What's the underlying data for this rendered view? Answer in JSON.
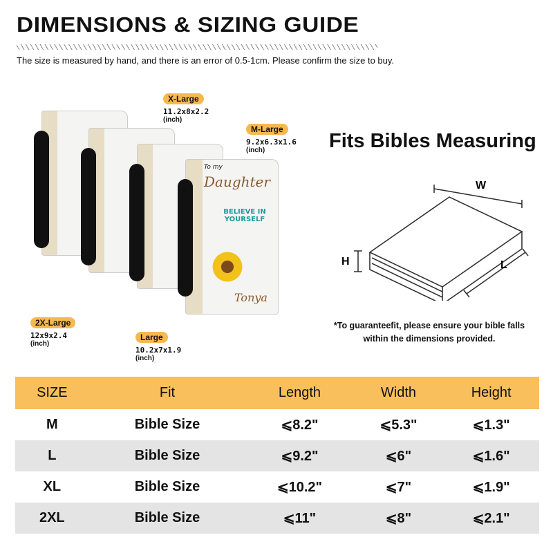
{
  "header": {
    "title": "DIMENSIONS & SIZING GUIDE",
    "note": "The size is measured by hand, and there is an error of 0.5-1cm. Please confirm the size to buy."
  },
  "sizes": [
    {
      "label": "X-Large",
      "dims": "11.2x8x2.2",
      "unit": "(inch)"
    },
    {
      "label": "M-Large",
      "dims": "9.2x6.3x1.6",
      "unit": "(inch)"
    },
    {
      "label": "2X-Large",
      "dims": "12x9x2.4",
      "unit": "(inch)"
    },
    {
      "label": "Large",
      "dims": "10.2x7x1.9",
      "unit": "(inch)"
    }
  ],
  "cover_text": {
    "to": "To my",
    "name": "Daughter",
    "believe": "BELIEVE IN YOURSELF",
    "signature": "Tonya"
  },
  "fits": {
    "title": "Fits Bibles Measuring",
    "w": "W",
    "h": "H",
    "l": "L",
    "note": "*To guaranteefit, please ensure your bible falls within the dimensions provided."
  },
  "table": {
    "headers": [
      "SIZE",
      "Fit",
      "Length",
      "Width",
      "Height"
    ],
    "rows": [
      [
        "M",
        "Bible Size",
        "⩽8.2\"",
        "⩽5.3\"",
        "⩽1.3\""
      ],
      [
        "L",
        "Bible Size",
        "⩽9.2\"",
        "⩽6\"",
        "⩽1.6\""
      ],
      [
        "XL",
        "Bible Size",
        "⩽10.2\"",
        "⩽7\"",
        "⩽1.9\""
      ],
      [
        "2XL",
        "Bible Size",
        "⩽11\"",
        "⩽8\"",
        "⩽2.1\""
      ]
    ]
  },
  "colors": {
    "accent": "#f8bf5c",
    "row_alt": "#e4e4e4"
  }
}
